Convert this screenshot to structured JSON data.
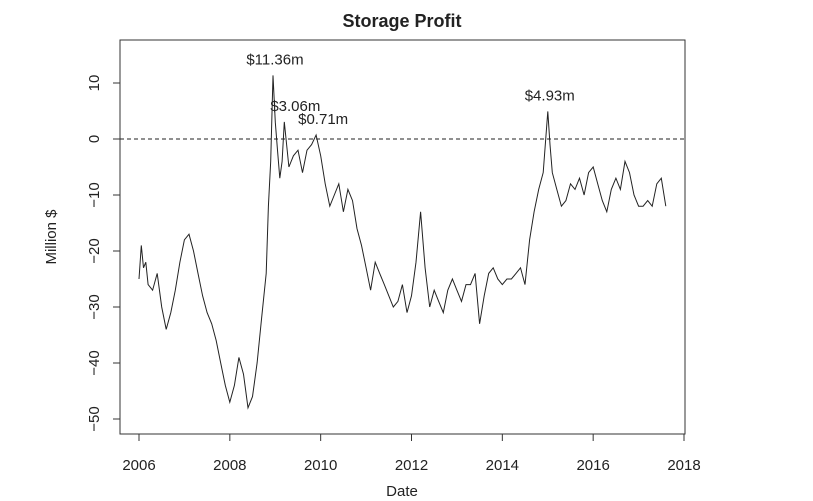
{
  "chart_data": {
    "type": "line",
    "title": "Storage Profit",
    "xlabel": "Date",
    "ylabel": "Million $",
    "xlim": [
      2006,
      2018
    ],
    "ylim": [
      -50,
      12
    ],
    "x_ticks": [
      2006,
      2008,
      2010,
      2012,
      2014,
      2016,
      2018
    ],
    "y_ticks": [
      -50,
      -40,
      -30,
      -20,
      -10,
      0,
      10
    ],
    "reference_line": {
      "y": 0,
      "style": "dashed"
    },
    "grid": false,
    "series": [
      {
        "x": [
          2006.0,
          2006.05,
          2006.1,
          2006.15,
          2006.2,
          2006.3,
          2006.4,
          2006.5,
          2006.6,
          2006.7,
          2006.8,
          2006.9,
          2007.0,
          2007.1,
          2007.2,
          2007.3,
          2007.4,
          2007.5,
          2007.6,
          2007.7,
          2007.8,
          2007.9,
          2008.0,
          2008.1,
          2008.2,
          2008.3,
          2008.4,
          2008.5,
          2008.6,
          2008.7,
          2008.8,
          2008.85,
          2008.9,
          2008.95,
          2009.0,
          2009.05,
          2009.1,
          2009.15,
          2009.2,
          2009.3,
          2009.4,
          2009.5,
          2009.6,
          2009.7,
          2009.8,
          2009.9,
          2010.0,
          2010.1,
          2010.2,
          2010.3,
          2010.4,
          2010.5,
          2010.6,
          2010.7,
          2010.8,
          2010.9,
          2011.0,
          2011.1,
          2011.2,
          2011.3,
          2011.4,
          2011.5,
          2011.6,
          2011.7,
          2011.8,
          2011.9,
          2012.0,
          2012.1,
          2012.2,
          2012.3,
          2012.4,
          2012.5,
          2012.6,
          2012.7,
          2012.8,
          2012.9,
          2013.0,
          2013.1,
          2013.2,
          2013.3,
          2013.4,
          2013.5,
          2013.6,
          2013.7,
          2013.8,
          2013.9,
          2014.0,
          2014.1,
          2014.2,
          2014.3,
          2014.4,
          2014.5,
          2014.6,
          2014.7,
          2014.8,
          2014.9,
          2015.0,
          2015.05,
          2015.1,
          2015.2,
          2015.3,
          2015.4,
          2015.5,
          2015.6,
          2015.7,
          2015.8,
          2015.9,
          2016.0,
          2016.1,
          2016.2,
          2016.3,
          2016.4,
          2016.5,
          2016.6,
          2016.7,
          2016.8,
          2016.9,
          2017.0,
          2017.1,
          2017.2,
          2017.3,
          2017.4,
          2017.5,
          2017.6
        ],
        "y": [
          -25,
          -19,
          -23,
          -22,
          -26,
          -27,
          -24,
          -30,
          -34,
          -31,
          -27,
          -22,
          -18,
          -17,
          -20,
          -24,
          -28,
          -31,
          -33,
          -36,
          -40,
          -44,
          -47,
          -44,
          -39,
          -42,
          -48,
          -46,
          -40,
          -32,
          -24,
          -12,
          -4,
          11.36,
          3,
          -2,
          -7,
          -4,
          3.06,
          -5,
          -3,
          -2,
          -6,
          -2,
          -1,
          0.71,
          -3,
          -8,
          -12,
          -10,
          -8,
          -13,
          -9,
          -11,
          -16,
          -19,
          -23,
          -27,
          -22,
          -24,
          -26,
          -28,
          -30,
          -29,
          -26,
          -31,
          -28,
          -22,
          -13,
          -23,
          -30,
          -27,
          -29,
          -31,
          -27,
          -25,
          -27,
          -29,
          -26,
          -26,
          -24,
          -33,
          -28,
          -24,
          -23,
          -25,
          -26,
          -25,
          -25,
          -24,
          -23,
          -26,
          -18,
          -13,
          -9,
          -6,
          4.93,
          -1,
          -6,
          -9,
          -12,
          -11,
          -8,
          -9,
          -7,
          -10,
          -6,
          -5,
          -8,
          -11,
          -13,
          -9,
          -7,
          -9,
          -4,
          -6,
          -10,
          -12,
          -12,
          -11,
          -12,
          -8,
          -7,
          -12
        ],
        "annotations": [
          {
            "x": 2008.95,
            "y": 11.36,
            "text": "$11.36m"
          },
          {
            "x": 2009.2,
            "y": 3.06,
            "text": "$3.06m"
          },
          {
            "x": 2009.9,
            "y": 0.71,
            "text": "$0.71m"
          },
          {
            "x": 2015.0,
            "y": 4.93,
            "text": "$4.93m"
          }
        ]
      }
    ]
  }
}
